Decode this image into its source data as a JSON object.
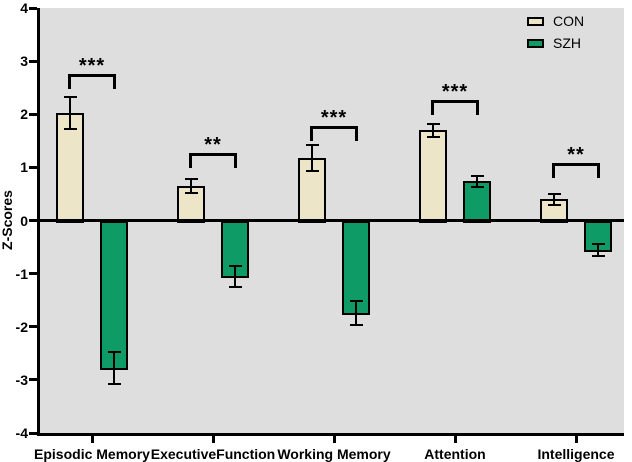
{
  "figure_colors": {
    "plot_background": "#DEDEDE",
    "axis_color": "#000000",
    "page_background": "#FFFFFF"
  },
  "chart_data": {
    "type": "bar",
    "title": "",
    "ylabel": "Z-Scores",
    "xlabel": "",
    "ylim": [
      -4,
      4
    ],
    "yticks": [
      4,
      3,
      2,
      1,
      0,
      -1,
      -2,
      -3,
      -4
    ],
    "grid": false,
    "legend_position": "top-right",
    "plot_bg": "#DEDEDE",
    "categories": [
      "Episodic Memory",
      "ExecutiveFunction",
      "Working Memory",
      "Attention",
      "Intelligence"
    ],
    "series": [
      {
        "name": "CON",
        "color": "#EDE5C7",
        "values": [
          2.03,
          0.65,
          1.18,
          1.7,
          0.4
        ],
        "errors": [
          0.3,
          0.14,
          0.24,
          0.12,
          0.1
        ]
      },
      {
        "name": "SZH",
        "color": "#0F9B66",
        "values": [
          -2.78,
          -1.05,
          -1.74,
          0.74,
          -0.55
        ],
        "errors": [
          0.3,
          0.2,
          0.23,
          0.1,
          0.11
        ]
      }
    ],
    "significance": [
      {
        "category": "Episodic Memory",
        "label": "***",
        "bracket_z": 2.75
      },
      {
        "category": "ExecutiveFunction",
        "label": "**",
        "bracket_z": 1.27
      },
      {
        "category": "Working Memory",
        "label": "***",
        "bracket_z": 1.77
      },
      {
        "category": "Attention",
        "label": "***",
        "bracket_z": 2.26
      },
      {
        "category": "Intelligence",
        "label": "**",
        "bracket_z": 1.08
      }
    ]
  }
}
